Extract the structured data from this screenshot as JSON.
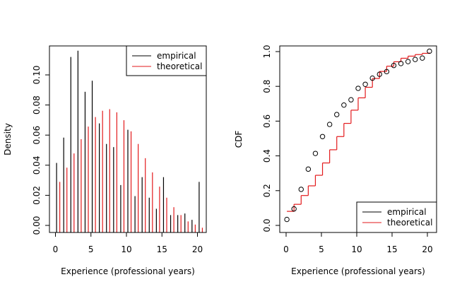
{
  "colors": {
    "empirical": "#000000",
    "theoretical": "#e31a1c",
    "axis": "#000000",
    "background": "#ffffff"
  },
  "chart_data": [
    {
      "type": "bar",
      "xlabel": "Experience (professional years)",
      "ylabel": "Density",
      "xlim": [
        -1,
        21
      ],
      "ylim": [
        0,
        0.118
      ],
      "xticks": [
        "0",
        "5",
        "10",
        "15",
        "20"
      ],
      "yticks": [
        "0.00",
        "0.02",
        "0.04",
        "0.06",
        "0.08",
        "0.10"
      ],
      "legend_position": "top-right",
      "legend": [
        "empirical",
        "theoretical"
      ],
      "x": [
        0,
        1,
        2,
        3,
        4,
        5,
        6,
        7,
        8,
        9,
        10,
        11,
        12,
        13,
        14,
        15,
        16,
        17,
        18,
        19,
        20
      ],
      "series": [
        {
          "name": "empirical",
          "values": [
            0.044,
            0.06,
            0.111,
            0.115,
            0.089,
            0.096,
            0.069,
            0.056,
            0.054,
            0.03,
            0.065,
            0.023,
            0.035,
            0.022,
            0.015,
            0.035,
            0.011,
            0.011,
            0.012,
            0.008,
            0.032
          ]
        },
        {
          "name": "theoretical",
          "values": [
            0.032,
            0.041,
            0.05,
            0.059,
            0.067,
            0.073,
            0.077,
            0.078,
            0.076,
            0.071,
            0.064,
            0.056,
            0.047,
            0.038,
            0.029,
            0.022,
            0.016,
            0.011,
            0.007,
            0.005,
            0.003
          ]
        }
      ]
    },
    {
      "type": "line",
      "xlabel": "Experience (professional years)",
      "ylabel": "CDF",
      "xlim": [
        -1,
        21
      ],
      "ylim": [
        -0.03,
        1.03
      ],
      "xticks": [
        "0",
        "5",
        "10",
        "15",
        "20"
      ],
      "yticks": [
        "0.0",
        "0.2",
        "0.4",
        "0.6",
        "0.8",
        "1.0"
      ],
      "legend_position": "bottom-right",
      "legend": [
        "empirical",
        "theoretical"
      ],
      "x": [
        0,
        1,
        2,
        3,
        4,
        5,
        6,
        7,
        8,
        9,
        10,
        11,
        12,
        13,
        14,
        15,
        16,
        17,
        18,
        19,
        20
      ],
      "series": [
        {
          "name": "empirical",
          "values": [
            0.044,
            0.104,
            0.215,
            0.33,
            0.419,
            0.515,
            0.584,
            0.64,
            0.694,
            0.724,
            0.789,
            0.812,
            0.847,
            0.869,
            0.884,
            0.919,
            0.93,
            0.941,
            0.953,
            0.961,
            1.0
          ]
        },
        {
          "name": "theoretical",
          "values": [
            0.09,
            0.13,
            0.18,
            0.235,
            0.295,
            0.365,
            0.44,
            0.515,
            0.59,
            0.665,
            0.735,
            0.795,
            0.845,
            0.885,
            0.915,
            0.94,
            0.96,
            0.972,
            0.981,
            0.988,
            0.993
          ]
        }
      ]
    }
  ]
}
